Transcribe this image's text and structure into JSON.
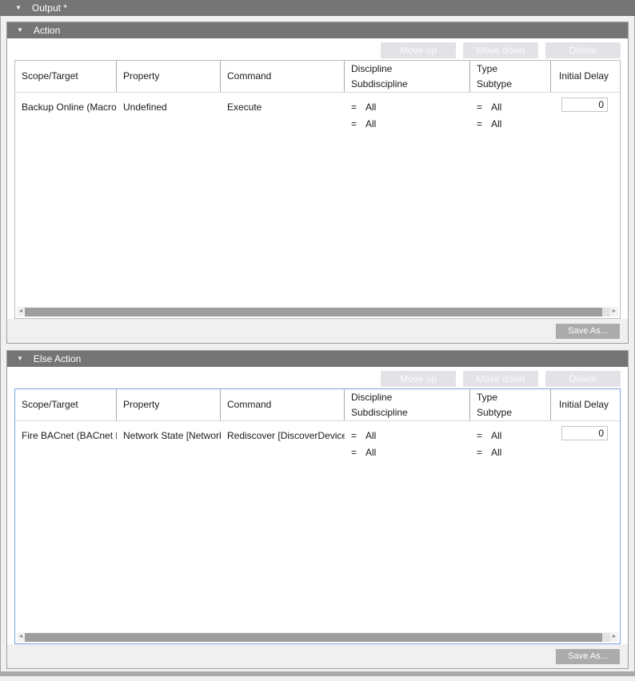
{
  "colors": {
    "panel_header_bg": "#757575",
    "focused_table_border": "#7aa6d8",
    "disabled_button_bg": "#e3e3e7",
    "save_as_button_bg": "#ababab",
    "scroll_thumb": "#9e9e9e"
  },
  "icons": {
    "collapse": "▼",
    "scroll_left": "◄",
    "scroll_right": "►"
  },
  "output": {
    "title": "Output *"
  },
  "action": {
    "title": "Action",
    "move_up": "Move up",
    "move_down": "Move down",
    "delete": "Delete",
    "save_as": "Save As...",
    "columns": {
      "scope_target": "Scope/Target",
      "property": "Property",
      "command": "Command",
      "discipline": "Discipline",
      "subdiscipline": "Subdiscipline",
      "type": "Type",
      "subtype": "Subtype",
      "initial_delay": "Initial Delay"
    },
    "row": {
      "scope_target": "Backup Online (Macro)",
      "property": "Undefined",
      "command": "Execute",
      "discipline_op": "=",
      "discipline": "All",
      "subdiscipline_op": "=",
      "subdiscipline": "All",
      "type_op": "=",
      "type": "All",
      "subtype_op": "=",
      "subtype": "All",
      "initial_delay": "0"
    }
  },
  "else_action": {
    "title": "Else Action",
    "move_up": "Move up",
    "move_down": "Move down",
    "delete": "Delete",
    "save_as": "Save As...",
    "columns": {
      "scope_target": "Scope/Target",
      "property": "Property",
      "command": "Command",
      "discipline": "Discipline",
      "subdiscipline": "Subdiscipline",
      "type": "Type",
      "subtype": "Subtype",
      "initial_delay": "Initial Delay"
    },
    "row": {
      "scope_target": "Fire BACnet (BACnet Net",
      "property": "Network State [NetworkS",
      "command": "Rediscover [DiscoverDevice]",
      "discipline_op": "=",
      "discipline": "All",
      "subdiscipline_op": "=",
      "subdiscipline": "All",
      "type_op": "=",
      "type": "All",
      "subtype_op": "=",
      "subtype": "All",
      "initial_delay": "0"
    }
  }
}
